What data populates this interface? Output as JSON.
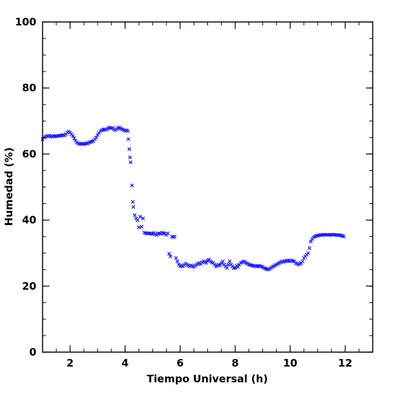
{
  "chart_data": {
    "type": "scatter",
    "xlabel": "Tiempo Universal (h)",
    "ylabel": "Humedad (%)",
    "xlim": [
      1,
      13
    ],
    "ylim": [
      0,
      100
    ],
    "x_ticks": [
      2,
      4,
      6,
      8,
      10,
      12
    ],
    "y_ticks": [
      0,
      20,
      40,
      60,
      80,
      100
    ],
    "x_minor_step": 0.5,
    "y_minor_step": 5,
    "grid": false,
    "marker": "x",
    "color": "#1a1aff",
    "series": [
      {
        "points": [
          [
            1.0,
            64.5
          ],
          [
            1.05,
            65.0
          ],
          [
            1.1,
            65.2
          ],
          [
            1.15,
            65.5
          ],
          [
            1.2,
            65.3
          ],
          [
            1.25,
            65.6
          ],
          [
            1.3,
            65.4
          ],
          [
            1.35,
            65.2
          ],
          [
            1.4,
            65.5
          ],
          [
            1.45,
            65.4
          ],
          [
            1.5,
            65.3
          ],
          [
            1.55,
            65.5
          ],
          [
            1.6,
            65.6
          ],
          [
            1.65,
            65.5
          ],
          [
            1.7,
            65.7
          ],
          [
            1.75,
            65.8
          ],
          [
            1.8,
            65.6
          ],
          [
            1.85,
            66.0
          ],
          [
            1.9,
            66.5
          ],
          [
            1.95,
            66.8
          ],
          [
            2.0,
            66.5
          ],
          [
            2.05,
            66.0
          ],
          [
            2.1,
            65.5
          ],
          [
            2.15,
            64.8
          ],
          [
            2.2,
            64.0
          ],
          [
            2.25,
            63.5
          ],
          [
            2.3,
            63.2
          ],
          [
            2.35,
            63.0
          ],
          [
            2.4,
            63.1
          ],
          [
            2.45,
            63.2
          ],
          [
            2.5,
            63.0
          ],
          [
            2.55,
            63.1
          ],
          [
            2.6,
            63.3
          ],
          [
            2.65,
            63.2
          ],
          [
            2.7,
            63.5
          ],
          [
            2.75,
            63.7
          ],
          [
            2.8,
            63.8
          ],
          [
            2.85,
            64.0
          ],
          [
            2.9,
            64.5
          ],
          [
            2.95,
            65.0
          ],
          [
            3.0,
            65.8
          ],
          [
            3.05,
            66.4
          ],
          [
            3.1,
            66.9
          ],
          [
            3.15,
            67.2
          ],
          [
            3.2,
            67.4
          ],
          [
            3.25,
            67.5
          ],
          [
            3.3,
            67.3
          ],
          [
            3.35,
            67.6
          ],
          [
            3.4,
            67.9
          ],
          [
            3.45,
            68.0
          ],
          [
            3.5,
            67.8
          ],
          [
            3.55,
            67.9
          ],
          [
            3.6,
            67.5
          ],
          [
            3.65,
            67.2
          ],
          [
            3.7,
            67.6
          ],
          [
            3.75,
            67.9
          ],
          [
            3.8,
            68.0
          ],
          [
            3.85,
            67.7
          ],
          [
            3.9,
            67.5
          ],
          [
            3.95,
            67.3
          ],
          [
            4.0,
            67.0
          ],
          [
            4.05,
            67.2
          ],
          [
            4.1,
            67.0
          ],
          [
            4.12,
            64.5
          ],
          [
            4.15,
            61.5
          ],
          [
            4.18,
            59.0
          ],
          [
            4.2,
            57.5
          ],
          [
            4.25,
            50.5
          ],
          [
            4.28,
            45.5
          ],
          [
            4.3,
            44.0
          ],
          [
            4.35,
            41.5
          ],
          [
            4.4,
            40.5
          ],
          [
            4.45,
            40.0
          ],
          [
            4.5,
            37.8
          ],
          [
            4.55,
            41.0
          ],
          [
            4.6,
            38.0
          ],
          [
            4.65,
            40.5
          ],
          [
            4.7,
            36.2
          ],
          [
            4.75,
            36.0
          ],
          [
            4.8,
            36.0
          ],
          [
            4.85,
            36.0
          ],
          [
            4.9,
            36.0
          ],
          [
            4.95,
            35.8
          ],
          [
            5.0,
            35.9
          ],
          [
            5.05,
            36.1
          ],
          [
            5.1,
            35.7
          ],
          [
            5.15,
            35.5
          ],
          [
            5.2,
            35.9
          ],
          [
            5.25,
            36.0
          ],
          [
            5.3,
            35.8
          ],
          [
            5.35,
            36.2
          ],
          [
            5.4,
            36.0
          ],
          [
            5.45,
            35.9
          ],
          [
            5.5,
            35.5
          ],
          [
            5.55,
            36.0
          ],
          [
            5.6,
            29.8
          ],
          [
            5.65,
            29.0
          ],
          [
            5.7,
            35.0
          ],
          [
            5.75,
            34.8
          ],
          [
            5.8,
            35.0
          ],
          [
            5.85,
            28.5
          ],
          [
            5.9,
            27.5
          ],
          [
            5.95,
            26.5
          ],
          [
            6.0,
            26.0
          ],
          [
            6.05,
            26.2
          ],
          [
            6.1,
            26.0
          ],
          [
            6.15,
            26.4
          ],
          [
            6.2,
            26.8
          ],
          [
            6.25,
            26.5
          ],
          [
            6.3,
            26.2
          ],
          [
            6.35,
            26.0
          ],
          [
            6.4,
            26.3
          ],
          [
            6.45,
            26.0
          ],
          [
            6.5,
            25.8
          ],
          [
            6.55,
            26.2
          ],
          [
            6.6,
            26.5
          ],
          [
            6.65,
            26.8
          ],
          [
            6.7,
            27.0
          ],
          [
            6.75,
            26.7
          ],
          [
            6.8,
            27.2
          ],
          [
            6.85,
            27.5
          ],
          [
            6.9,
            27.3
          ],
          [
            6.95,
            27.0
          ],
          [
            7.0,
            27.8
          ],
          [
            7.05,
            28.0
          ],
          [
            7.1,
            27.5
          ],
          [
            7.15,
            27.2
          ],
          [
            7.2,
            27.0
          ],
          [
            7.25,
            26.5
          ],
          [
            7.3,
            26.0
          ],
          [
            7.35,
            26.2
          ],
          [
            7.4,
            26.5
          ],
          [
            7.45,
            26.3
          ],
          [
            7.5,
            27.0
          ],
          [
            7.55,
            27.5
          ],
          [
            7.6,
            26.5
          ],
          [
            7.65,
            26.0
          ],
          [
            7.7,
            25.5
          ],
          [
            7.75,
            26.5
          ],
          [
            7.8,
            27.5
          ],
          [
            7.85,
            26.5
          ],
          [
            7.9,
            26.0
          ],
          [
            7.95,
            25.5
          ],
          [
            8.0,
            25.5
          ],
          [
            8.05,
            26.2
          ],
          [
            8.1,
            25.8
          ],
          [
            8.15,
            26.5
          ],
          [
            8.2,
            27.0
          ],
          [
            8.25,
            27.2
          ],
          [
            8.3,
            27.5
          ],
          [
            8.35,
            27.3
          ],
          [
            8.4,
            27.0
          ],
          [
            8.45,
            26.8
          ],
          [
            8.5,
            26.5
          ],
          [
            8.55,
            26.4
          ],
          [
            8.6,
            26.3
          ],
          [
            8.65,
            26.2
          ],
          [
            8.7,
            26.0
          ],
          [
            8.75,
            26.2
          ],
          [
            8.8,
            26.0
          ],
          [
            8.85,
            26.0
          ],
          [
            8.9,
            26.2
          ],
          [
            8.95,
            25.9
          ],
          [
            9.0,
            25.8
          ],
          [
            9.05,
            25.5
          ],
          [
            9.1,
            25.3
          ],
          [
            9.15,
            25.2
          ],
          [
            9.2,
            25.0
          ],
          [
            9.25,
            25.2
          ],
          [
            9.3,
            25.5
          ],
          [
            9.35,
            25.8
          ],
          [
            9.4,
            26.0
          ],
          [
            9.45,
            26.3
          ],
          [
            9.5,
            26.5
          ],
          [
            9.55,
            26.8
          ],
          [
            9.6,
            27.0
          ],
          [
            9.65,
            27.2
          ],
          [
            9.7,
            27.5
          ],
          [
            9.75,
            27.3
          ],
          [
            9.8,
            27.6
          ],
          [
            9.85,
            27.5
          ],
          [
            9.9,
            27.8
          ],
          [
            9.95,
            27.7
          ],
          [
            10.0,
            27.5
          ],
          [
            10.05,
            27.8
          ],
          [
            10.1,
            27.6
          ],
          [
            10.15,
            27.5
          ],
          [
            10.2,
            27.0
          ],
          [
            10.25,
            26.8
          ],
          [
            10.3,
            26.5
          ],
          [
            10.35,
            26.8
          ],
          [
            10.4,
            27.0
          ],
          [
            10.45,
            27.5
          ],
          [
            10.5,
            28.5
          ],
          [
            10.55,
            29.0
          ],
          [
            10.6,
            29.5
          ],
          [
            10.65,
            30.0
          ],
          [
            10.7,
            31.5
          ],
          [
            10.75,
            33.5
          ],
          [
            10.8,
            34.3
          ],
          [
            10.85,
            34.8
          ],
          [
            10.9,
            35.0
          ],
          [
            10.95,
            35.2
          ],
          [
            11.0,
            35.3
          ],
          [
            11.05,
            35.4
          ],
          [
            11.1,
            35.5
          ],
          [
            11.15,
            35.5
          ],
          [
            11.2,
            35.5
          ],
          [
            11.25,
            35.6
          ],
          [
            11.3,
            35.5
          ],
          [
            11.35,
            35.6
          ],
          [
            11.4,
            35.5
          ],
          [
            11.45,
            35.5
          ],
          [
            11.5,
            35.6
          ],
          [
            11.55,
            35.5
          ],
          [
            11.6,
            35.6
          ],
          [
            11.65,
            35.5
          ],
          [
            11.7,
            35.5
          ],
          [
            11.75,
            35.4
          ],
          [
            11.8,
            35.5
          ],
          [
            11.85,
            35.3
          ],
          [
            11.9,
            35.2
          ],
          [
            11.95,
            35.0
          ]
        ]
      }
    ]
  }
}
